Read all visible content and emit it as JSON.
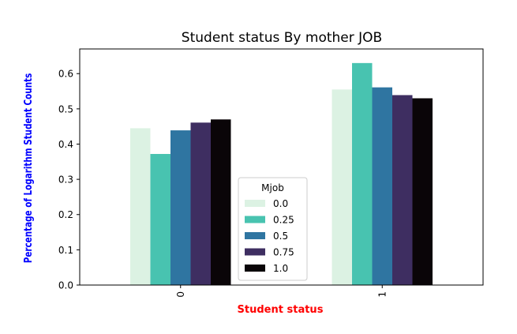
{
  "chart_data": {
    "type": "bar",
    "title": "Student status By mother JOB",
    "xlabel": "Student status",
    "ylabel": "Percentage of Logarithm Student Counts",
    "categories": [
      "0",
      "1"
    ],
    "ylim": [
      0.0,
      0.67
    ],
    "yticks": [
      0.0,
      0.1,
      0.2,
      0.3,
      0.4,
      0.5,
      0.6
    ],
    "grid": false,
    "legend": {
      "title": "Mjob",
      "placement": "lower-center"
    },
    "series": [
      {
        "name": "0.0",
        "color": "#dcf2e3",
        "values": [
          0.445,
          0.555
        ]
      },
      {
        "name": "0.25",
        "color": "#48c3b0",
        "values": [
          0.372,
          0.63
        ]
      },
      {
        "name": "0.5",
        "color": "#2f75a1",
        "values": [
          0.439,
          0.561
        ]
      },
      {
        "name": "0.75",
        "color": "#3e2e61",
        "values": [
          0.461,
          0.539
        ]
      },
      {
        "name": "1.0",
        "color": "#0a0508",
        "values": [
          0.47,
          0.53
        ]
      }
    ],
    "colors": {
      "title": "#000000",
      "xlabel": "#ff0000",
      "ylabel": "#0000ff"
    }
  }
}
